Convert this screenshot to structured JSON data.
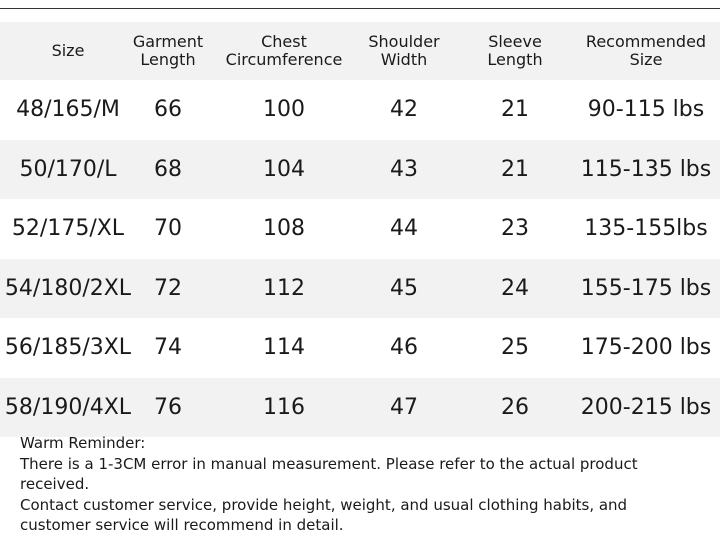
{
  "table": {
    "header": [
      "Size",
      "Garment Length",
      "Chest Circumference",
      "Shoulder Width",
      "Sleeve Length",
      "Recommended Size"
    ],
    "rows": [
      [
        "48/165/M",
        66,
        100,
        42,
        21,
        "90-115 lbs"
      ],
      [
        "50/170/L",
        68,
        104,
        43,
        21,
        "115-135 lbs"
      ],
      [
        "52/175/XL",
        70,
        108,
        44,
        23,
        "135-155lbs"
      ],
      [
        "54/180/2XL",
        72,
        112,
        45,
        24,
        "155-175 lbs"
      ],
      [
        "56/185/3XL",
        74,
        114,
        46,
        25,
        "175-200 lbs"
      ],
      [
        "58/190/4XL",
        76,
        116,
        47,
        26,
        "200-215 lbs"
      ]
    ]
  },
  "reminder": {
    "title": "Warm Reminder:",
    "lines": [
      "There is a 1-3CM error in manual measurement. Please refer to the actual product received.",
      "Contact customer service, provide height, weight, and usual clothing habits, and customer service will recommend in detail."
    ]
  }
}
